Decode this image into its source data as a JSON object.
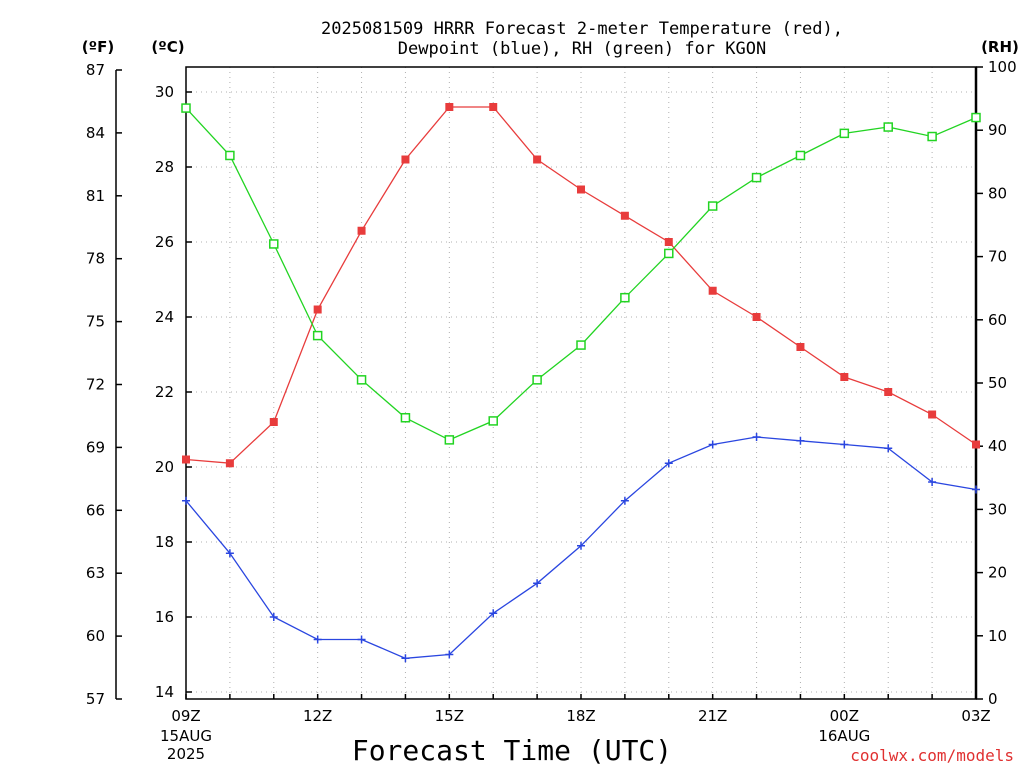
{
  "title": {
    "line1": "2025081509 HRRR Forecast 2-meter Temperature (red),",
    "line2": "Dewpoint (blue), RH (green) for KGON"
  },
  "axes": {
    "left_outer_unit": "(ºF)",
    "left_inner_unit": "(ºC)",
    "right_unit": "(RH)",
    "xlabel": "Forecast Time (UTC)",
    "x_ticks": [
      {
        "i": 0,
        "label": "09Z"
      },
      {
        "i": 3,
        "label": "12Z"
      },
      {
        "i": 6,
        "label": "15Z"
      },
      {
        "i": 9,
        "label": "18Z"
      },
      {
        "i": 12,
        "label": "21Z"
      },
      {
        "i": 15,
        "label": "00Z"
      },
      {
        "i": 18,
        "label": "03Z"
      }
    ],
    "date_labels": [
      {
        "i": 0,
        "lines": [
          "15AUG",
          "2025"
        ]
      },
      {
        "i": 15,
        "lines": [
          "16AUG"
        ]
      }
    ],
    "f_ticks": [
      "87",
      "84",
      "81",
      "78",
      "75",
      "72",
      "69",
      "66",
      "63",
      "60",
      "57"
    ],
    "c_ticks": [
      "30",
      "28",
      "26",
      "24",
      "22",
      "20",
      "18",
      "16",
      "14"
    ],
    "rh_ticks": [
      "100",
      "90",
      "80",
      "70",
      "60",
      "50",
      "40",
      "30",
      "20",
      "10",
      "0"
    ]
  },
  "credit": "coolwx.com/models",
  "colors": {
    "temperature": "#e83c3c",
    "dewpoint": "#2a46e0",
    "rh": "#22d422"
  },
  "chart_data": {
    "type": "line",
    "title": "2025081509 HRRR Forecast 2-meter Temperature (red), Dewpoint (blue), RH (green) for KGON",
    "xlabel": "Forecast Time (UTC)",
    "x": [
      "2025-08-15 09Z",
      "2025-08-15 10Z",
      "2025-08-15 11Z",
      "2025-08-15 12Z",
      "2025-08-15 13Z",
      "2025-08-15 14Z",
      "2025-08-15 15Z",
      "2025-08-15 16Z",
      "2025-08-15 17Z",
      "2025-08-15 18Z",
      "2025-08-15 19Z",
      "2025-08-15 20Z",
      "2025-08-15 21Z",
      "2025-08-15 22Z",
      "2025-08-15 23Z",
      "2025-08-16 00Z",
      "2025-08-16 01Z",
      "2025-08-16 02Z",
      "2025-08-16 03Z"
    ],
    "ylim_c": [
      13.9,
      30.6
    ],
    "ylim_rh": [
      0,
      100
    ],
    "grid": true,
    "series": [
      {
        "values": [
          20.2,
          20.1,
          21.2,
          24.2,
          26.3,
          28.2,
          29.6,
          29.6,
          28.2,
          27.4,
          26.7,
          26.0,
          24.7,
          24.0,
          23.2,
          22.4,
          22.0,
          21.4,
          20.6
        ],
        "unit": "ºC",
        "axis": "left",
        "marker": "filled-square"
      },
      {
        "values": [
          19.1,
          17.7,
          16.0,
          15.4,
          15.4,
          14.9,
          15.0,
          16.1,
          16.9,
          17.9,
          19.1,
          20.1,
          20.6,
          20.8,
          20.7,
          20.6,
          20.5,
          19.6,
          19.4
        ],
        "unit": "ºC",
        "axis": "left",
        "marker": "plus"
      },
      {
        "values": [
          93.5,
          86.0,
          72.0,
          57.5,
          50.5,
          44.5,
          41.0,
          44.0,
          50.5,
          56.0,
          63.5,
          70.5,
          78.0,
          82.5,
          86.0,
          89.5,
          90.5,
          89.0,
          92.0
        ],
        "unit": "%",
        "axis": "right",
        "marker": "open-square"
      }
    ]
  }
}
